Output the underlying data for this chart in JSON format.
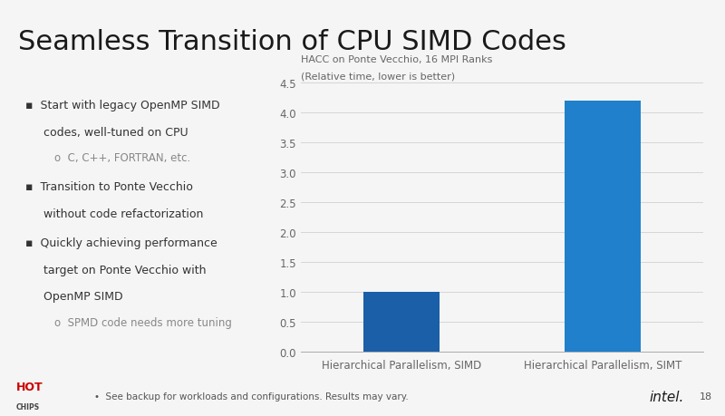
{
  "title": "Seamless Transition of CPU SIMD Codes",
  "chart_title_line1": "HACC on Ponte Vecchio, 16 MPI Ranks",
  "chart_title_line2": "(Relative time, lower is better)",
  "categories": [
    "Hierarchical Parallelism, SIMD",
    "Hierarchical Parallelism, SIMT"
  ],
  "values": [
    1.0,
    4.2
  ],
  "bar_color_simd": "#1a5fa8",
  "bar_color_simt": "#2080cc",
  "ylim": [
    0,
    4.5
  ],
  "yticks": [
    0,
    0.5,
    1.0,
    1.5,
    2.0,
    2.5,
    3.0,
    3.5,
    4.0,
    4.5
  ],
  "background_color": "#f5f5f5",
  "chart_bg_color": "#f5f5f5",
  "footer_text": "See backup for workloads and configurations. Results may vary.",
  "page_number": "18",
  "accent_line_color": "#1a5fa8",
  "grid_color": "#d0d0d0",
  "text_color": "#333333",
  "title_fontsize": 22,
  "body_fontsize": 9,
  "chart_label_fontsize": 8.5,
  "footer_fontsize": 7.5
}
